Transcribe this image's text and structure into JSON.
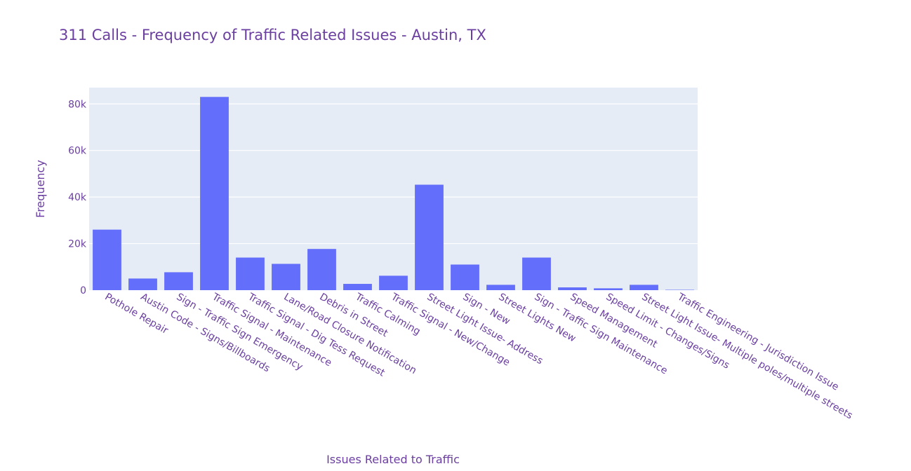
{
  "chart_data": {
    "type": "bar",
    "title": "311 Calls - Frequency of Traffic Related Issues - Austin, TX",
    "xlabel": "Issues Related to Traffic",
    "ylabel": "Frequency",
    "ylim": [
      0,
      87000
    ],
    "yticks": [
      0,
      20000,
      40000,
      60000,
      80000
    ],
    "ytick_labels": [
      "0",
      "20k",
      "40k",
      "60k",
      "80k"
    ],
    "grid": true,
    "categories": [
      "Pothole Repair",
      "Austin Code - Signs/Billboards",
      "Sign - Traffic Sign Emergency",
      "Traffic Signal - Maintenance",
      "Traffic Signal - Dig Tess Request",
      "Lane/Road Closure Notification",
      "Debris in Street",
      "Traffic Calming",
      "Traffic Signal - New/Change",
      "Street Light Issue- Address",
      "Sign - New",
      "Street Lights New",
      "Sign - Traffic Sign Maintenance",
      "Speed Management",
      "Speed Limit - Changes/Signs",
      "Street Light Issue- Multiple poles/multiple streets",
      "Traffic Engineering - Jurisdiction Issue"
    ],
    "values": [
      26000,
      5000,
      7700,
      83000,
      14000,
      11300,
      17700,
      2700,
      6200,
      45300,
      11000,
      2300,
      14000,
      1200,
      800,
      2300,
      150
    ],
    "colors": {
      "bar": "#636efa",
      "plot_bg": "#e5ecf6",
      "grid": "#ffffff",
      "text": "#6a3fa0"
    }
  }
}
